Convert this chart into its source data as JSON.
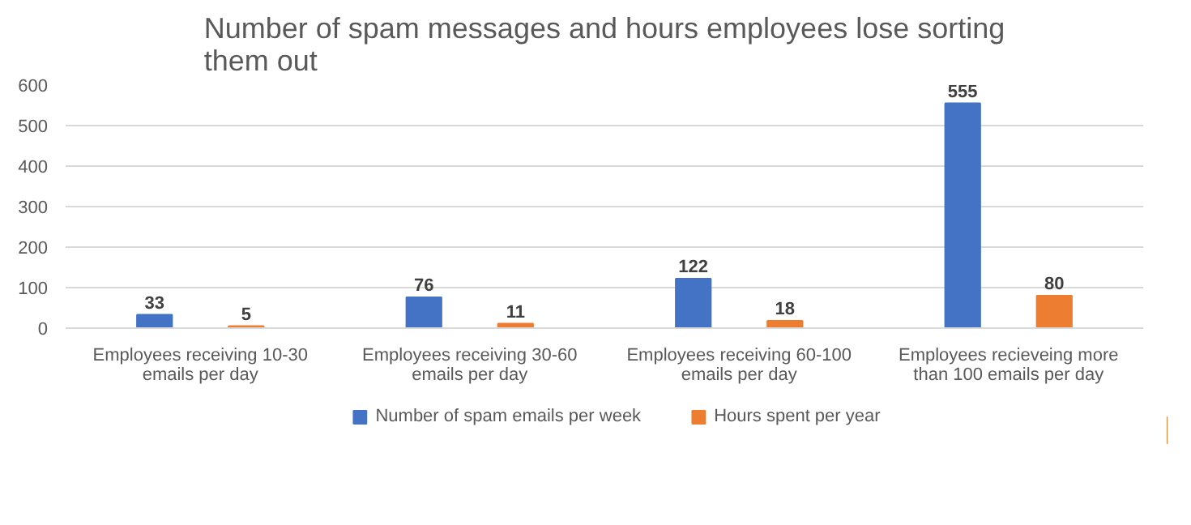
{
  "chart_data": {
    "type": "bar",
    "title": "Number of spam messages and hours employees lose sorting them out",
    "categories": [
      "Employees receiving 10-30 emails per day",
      "Employees receiving 30-60 emails per day",
      "Employees receiving 60-100 emails per day",
      "Employees recieveing more than 100 emails per day"
    ],
    "series": [
      {
        "name": "Number of spam emails per week",
        "color": "#4472c4",
        "values": [
          33,
          76,
          122,
          555
        ]
      },
      {
        "name": "Hours spent per year",
        "color": "#ed7d31",
        "values": [
          5,
          11,
          18,
          80
        ]
      }
    ],
    "ylim": [
      0,
      600
    ],
    "yticks": [
      0,
      100,
      200,
      300,
      400,
      500,
      600
    ],
    "grid": "y",
    "legend": "bottom",
    "data_labels": true
  }
}
